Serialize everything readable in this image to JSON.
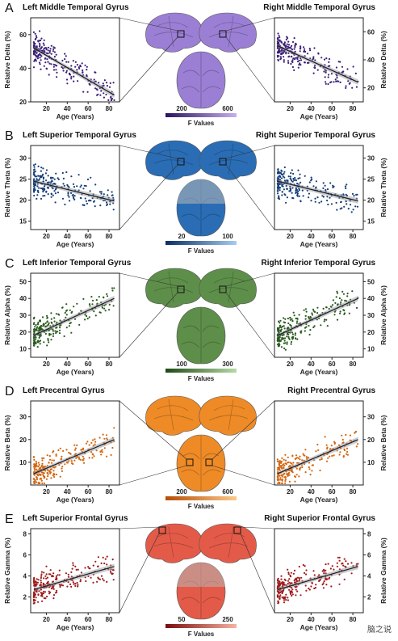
{
  "panels": [
    {
      "label": "A",
      "left_title": "Left Middle Temporal Gyrus",
      "right_title": "Right Middle Temporal Gyrus",
      "ylabel": "Relative Delta (%)",
      "xlabel": "Age (Years)",
      "colorbar_label": "F Values",
      "colorbar_ticks": [
        "200",
        "600"
      ],
      "color": "#3b1f78",
      "colorbar_from": "#2a1363",
      "colorbar_to": "#c7b0ec",
      "brain_color": "#9b7fd4"
    },
    {
      "label": "B",
      "left_title": "Left Superior Temporal Gyrus",
      "right_title": "Right Superior Temporal Gyrus",
      "ylabel": "Relative Theta (%)",
      "xlabel": "Age (Years)",
      "colorbar_label": "F Values",
      "colorbar_ticks": [
        "20",
        "100"
      ],
      "color": "#163f79",
      "colorbar_from": "#0b2e66",
      "colorbar_to": "#a6cdee",
      "brain_color": "#2a6db4"
    },
    {
      "label": "C",
      "left_title": "Left Inferior Temporal Gyrus",
      "right_title": "Right Inferior Temporal Gyrus",
      "ylabel": "Relative Alpha (%)",
      "xlabel": "Age (Years)",
      "colorbar_label": "F Values",
      "colorbar_ticks": [
        "100",
        "300"
      ],
      "color": "#2a5a1f",
      "colorbar_from": "#1e4a17",
      "colorbar_to": "#b6dba4",
      "brain_color": "#5e8f4a"
    },
    {
      "label": "D",
      "left_title": "Left Precentral Gyrus",
      "right_title": "Right Precentral Gyrus",
      "ylabel": "Relative Beta (%)",
      "xlabel": "Age (Years)",
      "colorbar_label": "F Values",
      "colorbar_ticks": [
        "200",
        "600"
      ],
      "color": "#d4660f",
      "colorbar_from": "#b84d06",
      "colorbar_to": "#fbc98a",
      "brain_color": "#ee8b27"
    },
    {
      "label": "E",
      "left_title": "Left Superior Frontal Gyrus",
      "right_title": "Right Superior Frontal Gyrus",
      "ylabel": "Relative Gamma (%)",
      "xlabel": "Age (Years)",
      "colorbar_label": "F Values",
      "colorbar_ticks": [
        "50",
        "250"
      ],
      "color": "#9e1b1b",
      "colorbar_from": "#7a0d0d",
      "colorbar_to": "#f7b2a2",
      "brain_color": "#e35b48"
    }
  ],
  "chart_data": [
    {
      "type": "scatter",
      "panel": "A",
      "side": "left",
      "xlabel": "Age (Years)",
      "ylabel": "Relative Delta (%)",
      "xlim": [
        5,
        90
      ],
      "ylim": [
        20,
        70
      ],
      "yticks": [
        20,
        40,
        60
      ],
      "xticks": [
        20,
        40,
        60,
        80
      ],
      "fit": {
        "x": [
          8,
          85
        ],
        "y": [
          52,
          24
        ]
      }
    },
    {
      "type": "scatter",
      "panel": "A",
      "side": "right",
      "xlabel": "Age (Years)",
      "ylabel": "Relative Delta (%)",
      "xlim": [
        5,
        90
      ],
      "ylim": [
        10,
        70
      ],
      "yticks": [
        20,
        40,
        60
      ],
      "xticks": [
        20,
        40,
        60,
        80
      ],
      "fit": {
        "x": [
          8,
          85
        ],
        "y": [
          50,
          24
        ]
      }
    },
    {
      "type": "scatter",
      "panel": "B",
      "side": "left",
      "xlabel": "Age (Years)",
      "ylabel": "Relative Theta (%)",
      "xlim": [
        5,
        90
      ],
      "ylim": [
        13,
        33
      ],
      "yticks": [
        15,
        20,
        25,
        30
      ],
      "xticks": [
        20,
        40,
        60,
        80
      ],
      "fit": {
        "x": [
          8,
          85
        ],
        "y": [
          24.5,
          19.8
        ]
      }
    },
    {
      "type": "scatter",
      "panel": "B",
      "side": "right",
      "xlabel": "Age (Years)",
      "ylabel": "Relative Theta (%)",
      "xlim": [
        5,
        90
      ],
      "ylim": [
        13,
        33
      ],
      "yticks": [
        15,
        20,
        25,
        30
      ],
      "xticks": [
        20,
        40,
        60,
        80
      ],
      "fit": {
        "x": [
          8,
          85
        ],
        "y": [
          24.5,
          19.8
        ]
      }
    },
    {
      "type": "scatter",
      "panel": "C",
      "side": "left",
      "xlabel": "Age (Years)",
      "ylabel": "Relative Alpha (%)",
      "xlim": [
        5,
        90
      ],
      "ylim": [
        5,
        55
      ],
      "yticks": [
        10,
        20,
        30,
        40,
        50
      ],
      "xticks": [
        20,
        40,
        60,
        80
      ],
      "fit": {
        "x": [
          8,
          85
        ],
        "y": [
          18,
          40
        ]
      }
    },
    {
      "type": "scatter",
      "panel": "C",
      "side": "right",
      "xlabel": "Age (Years)",
      "ylabel": "Relative Alpha (%)",
      "xlim": [
        5,
        90
      ],
      "ylim": [
        5,
        55
      ],
      "yticks": [
        10,
        20,
        30,
        40,
        50
      ],
      "xticks": [
        20,
        40,
        60,
        80
      ],
      "fit": {
        "x": [
          8,
          85
        ],
        "y": [
          18,
          40
        ]
      }
    },
    {
      "type": "scatter",
      "panel": "D",
      "side": "left",
      "xlabel": "Age (Years)",
      "ylabel": "Relative Beta (%)",
      "xlim": [
        5,
        90
      ],
      "ylim": [
        0,
        37
      ],
      "yticks": [
        10,
        20,
        30
      ],
      "xticks": [
        20,
        40,
        60,
        80
      ],
      "fit": {
        "x": [
          8,
          85
        ],
        "y": [
          5,
          20
        ]
      }
    },
    {
      "type": "scatter",
      "panel": "D",
      "side": "right",
      "xlabel": "Age (Years)",
      "ylabel": "Relative Beta (%)",
      "xlim": [
        5,
        90
      ],
      "ylim": [
        0,
        37
      ],
      "yticks": [
        10,
        20,
        30
      ],
      "xticks": [
        20,
        40,
        60,
        80
      ],
      "fit": {
        "x": [
          8,
          85
        ],
        "y": [
          5,
          20
        ]
      }
    },
    {
      "type": "scatter",
      "panel": "E",
      "side": "left",
      "xlabel": "Age (Years)",
      "ylabel": "Relative Gamma (%)",
      "xlim": [
        5,
        90
      ],
      "ylim": [
        0.5,
        8.5
      ],
      "yticks": [
        2,
        4,
        6,
        8
      ],
      "xticks": [
        20,
        40,
        60,
        80
      ],
      "fit": {
        "x": [
          8,
          85
        ],
        "y": [
          2.7,
          4.9
        ]
      }
    },
    {
      "type": "scatter",
      "panel": "E",
      "side": "right",
      "xlabel": "Age (Years)",
      "ylabel": "Relative Gamma (%)",
      "xlim": [
        5,
        90
      ],
      "ylim": [
        0.5,
        8.5
      ],
      "yticks": [
        2,
        4,
        6,
        8
      ],
      "xticks": [
        20,
        40,
        60,
        80
      ],
      "fit": {
        "x": [
          8,
          85
        ],
        "y": [
          2.7,
          4.9
        ]
      }
    }
  ],
  "watermark": "脑之说"
}
